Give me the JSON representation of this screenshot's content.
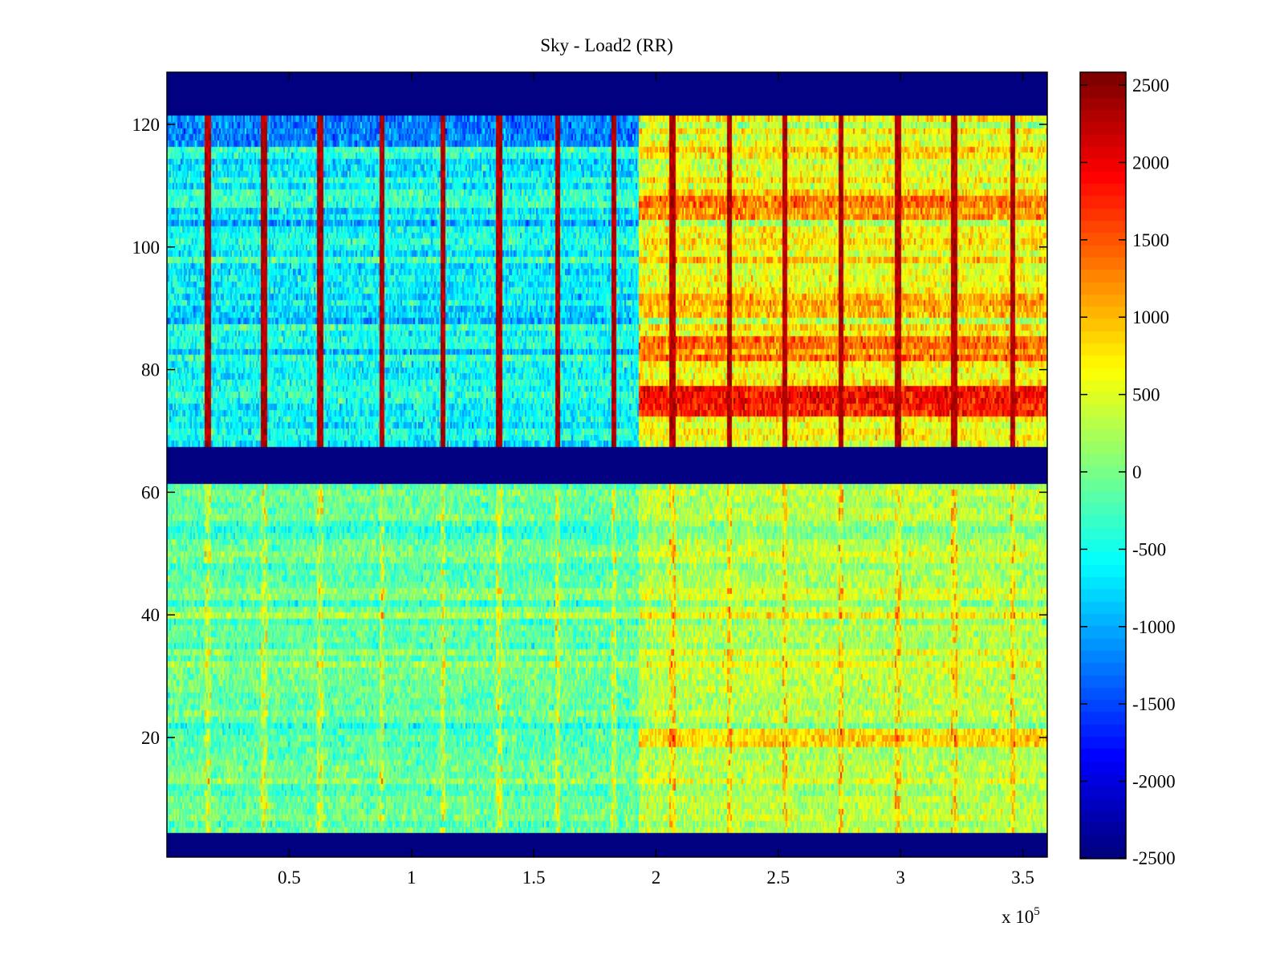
{
  "chart_data": {
    "type": "heatmap",
    "title": "Sky - Load2 (RR)",
    "xlabel": "",
    "ylabel": "",
    "x_multiplier_label": "x 10",
    "x_multiplier_exponent": "5",
    "xlim": [
      0,
      3.6
    ],
    "x_units_scale": 100000,
    "ylim": [
      0.5,
      128.5
    ],
    "xticks": [
      0.5,
      1,
      1.5,
      2,
      2.5,
      3,
      3.5
    ],
    "xtick_labels": [
      "0.5",
      "1",
      "1.5",
      "2",
      "2.5",
      "3",
      "3.5"
    ],
    "yticks": [
      20,
      40,
      60,
      80,
      100,
      120
    ],
    "ytick_labels": [
      "20",
      "40",
      "60",
      "80",
      "100",
      "120"
    ],
    "colormap": "jet",
    "clim": [
      -2500,
      2583
    ],
    "colorbar": {
      "ticks": [
        -2500,
        -2000,
        -1500,
        -1000,
        -500,
        0,
        500,
        1000,
        1500,
        2000,
        2500
      ],
      "tick_labels": [
        "-2500",
        "-2000",
        "-1500",
        "-1000",
        "-500",
        "0",
        "500",
        "1000",
        "1500",
        "2000",
        "2500"
      ],
      "placement": "right"
    },
    "masked_rows": [
      [
        1,
        4
      ],
      [
        62,
        67
      ],
      [
        122,
        128
      ]
    ],
    "masked_value": -2500,
    "transition_x": 1.93,
    "regions": [
      {
        "name": "upper-before",
        "rows": [
          68,
          121
        ],
        "x": [
          0,
          1.93
        ],
        "mean": -600
      },
      {
        "name": "upper-after",
        "rows": [
          68,
          121
        ],
        "x": [
          1.93,
          3.6
        ],
        "mean": 600
      },
      {
        "name": "lower-before",
        "rows": [
          5,
          61
        ],
        "x": [
          0,
          1.93
        ],
        "mean": -100
      },
      {
        "name": "lower-after",
        "rows": [
          5,
          61
        ],
        "x": [
          1.93,
          3.6
        ],
        "mean": 300
      }
    ],
    "hot_rows_after_transition": [
      {
        "rows": [
          73,
          77
        ],
        "value": 1800
      },
      {
        "rows": [
          82,
          85
        ],
        "value": 1300
      },
      {
        "rows": [
          89,
          92
        ],
        "value": 1100
      },
      {
        "rows": [
          105,
          108
        ],
        "value": 1200
      },
      {
        "rows": [
          19,
          21
        ],
        "value": 900
      }
    ],
    "cool_rows": [
      {
        "rows": [
          117,
          121
        ],
        "x": [
          0,
          1.93
        ],
        "value": -1200
      }
    ],
    "vertical_spikes_x": [
      0.17,
      0.4,
      0.63,
      0.88,
      1.13,
      1.36,
      1.6,
      1.83,
      2.07,
      2.3,
      2.53,
      2.76,
      2.99,
      3.22,
      3.46
    ],
    "spike_value_upper": 2300,
    "spike_value_lower": 900,
    "grid": false
  }
}
